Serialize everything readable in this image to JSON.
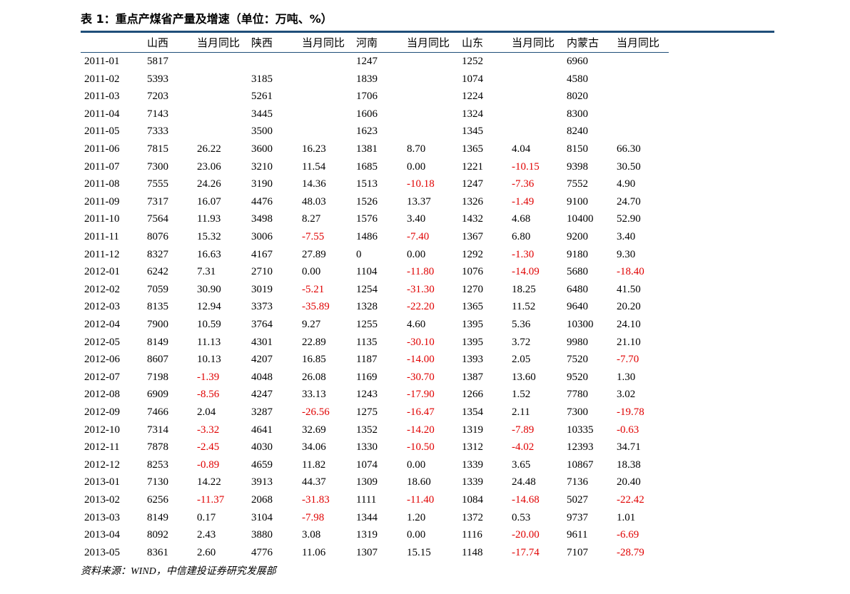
{
  "header": {
    "title": "表 1：重点产煤省产量及增速（单位：万吨、%）"
  },
  "table": {
    "columns": [
      "山西",
      "当月同比",
      "陕西",
      "当月同比",
      "河南",
      "当月同比",
      "山东",
      "当月同比",
      "内蒙古",
      "当月同比"
    ],
    "rows": [
      [
        "2011-01",
        "5817",
        null,
        null,
        null,
        "1247",
        null,
        "1252",
        null,
        "6960",
        null
      ],
      [
        "2011-02",
        "5393",
        null,
        "3185",
        null,
        "1839",
        null,
        "1074",
        null,
        "4580",
        null
      ],
      [
        "2011-03",
        "7203",
        null,
        "5261",
        null,
        "1706",
        null,
        "1224",
        null,
        "8020",
        null
      ],
      [
        "2011-04",
        "7143",
        null,
        "3445",
        null,
        "1606",
        null,
        "1324",
        null,
        "8300",
        null
      ],
      [
        "2011-05",
        "7333",
        null,
        "3500",
        null,
        "1623",
        null,
        "1345",
        null,
        "8240",
        null
      ],
      [
        "2011-06",
        "7815",
        "26.22",
        "3600",
        "16.23",
        "1381",
        "8.70",
        "1365",
        "4.04",
        "8150",
        "66.30"
      ],
      [
        "2011-07",
        "7300",
        "23.06",
        "3210",
        "11.54",
        "1685",
        "0.00",
        "1221",
        "-10.15",
        "9398",
        "30.50"
      ],
      [
        "2011-08",
        "7555",
        "24.26",
        "3190",
        "14.36",
        "1513",
        "-10.18",
        "1247",
        "-7.36",
        "7552",
        "4.90"
      ],
      [
        "2011-09",
        "7317",
        "16.07",
        "4476",
        "48.03",
        "1526",
        "13.37",
        "1326",
        "-1.49",
        "9100",
        "24.70"
      ],
      [
        "2011-10",
        "7564",
        "11.93",
        "3498",
        "8.27",
        "1576",
        "3.40",
        "1432",
        "4.68",
        "10400",
        "52.90"
      ],
      [
        "2011-11",
        "8076",
        "15.32",
        "3006",
        "-7.55",
        "1486",
        "-7.40",
        "1367",
        "6.80",
        "9200",
        "3.40"
      ],
      [
        "2011-12",
        "8327",
        "16.63",
        "4167",
        "27.89",
        "0",
        "0.00",
        "1292",
        "-1.30",
        "9180",
        "9.30"
      ],
      [
        "2012-01",
        "6242",
        "7.31",
        "2710",
        "0.00",
        "1104",
        "-11.80",
        "1076",
        "-14.09",
        "5680",
        "-18.40"
      ],
      [
        "2012-02",
        "7059",
        "30.90",
        "3019",
        "-5.21",
        "1254",
        "-31.30",
        "1270",
        "18.25",
        "6480",
        "41.50"
      ],
      [
        "2012-03",
        "8135",
        "12.94",
        "3373",
        "-35.89",
        "1328",
        "-22.20",
        "1365",
        "11.52",
        "9640",
        "20.20"
      ],
      [
        "2012-04",
        "7900",
        "10.59",
        "3764",
        "9.27",
        "1255",
        "4.60",
        "1395",
        "5.36",
        "10300",
        "24.10"
      ],
      [
        "2012-05",
        "8149",
        "11.13",
        "4301",
        "22.89",
        "1135",
        "-30.10",
        "1395",
        "3.72",
        "9980",
        "21.10"
      ],
      [
        "2012-06",
        "8607",
        "10.13",
        "4207",
        "16.85",
        "1187",
        "-14.00",
        "1393",
        "2.05",
        "7520",
        "-7.70"
      ],
      [
        "2012-07",
        "7198",
        "-1.39",
        "4048",
        "26.08",
        "1169",
        "-30.70",
        "1387",
        "13.60",
        "9520",
        "1.30"
      ],
      [
        "2012-08",
        "6909",
        "-8.56",
        "4247",
        "33.13",
        "1243",
        "-17.90",
        "1266",
        "1.52",
        "7780",
        "3.02"
      ],
      [
        "2012-09",
        "7466",
        "2.04",
        "3287",
        "-26.56",
        "1275",
        "-16.47",
        "1354",
        "2.11",
        "7300",
        "-19.78"
      ],
      [
        "2012-10",
        "7314",
        "-3.32",
        "4641",
        "32.69",
        "1352",
        "-14.20",
        "1319",
        "-7.89",
        "10335",
        "-0.63"
      ],
      [
        "2012-11",
        "7878",
        "-2.45",
        "4030",
        "34.06",
        "1330",
        "-10.50",
        "1312",
        "-4.02",
        "12393",
        "34.71"
      ],
      [
        "2012-12",
        "8253",
        "-0.89",
        "4659",
        "11.82",
        "1074",
        "0.00",
        "1339",
        "3.65",
        "10867",
        "18.38"
      ],
      [
        "2013-01",
        "7130",
        "14.22",
        "3913",
        "44.37",
        "1309",
        "18.60",
        "1339",
        "24.48",
        "7136",
        "20.40"
      ],
      [
        "2013-02",
        "6256",
        "-11.37",
        "2068",
        "-31.83",
        "1111",
        "-11.40",
        "1084",
        "-14.68",
        "5027",
        "-22.42"
      ],
      [
        "2013-03",
        "8149",
        "0.17",
        "3104",
        "-7.98",
        "1344",
        "1.20",
        "1372",
        "0.53",
        "9737",
        "1.01"
      ],
      [
        "2013-04",
        "8092",
        "2.43",
        "3880",
        "3.08",
        "1319",
        "0.00",
        "1116",
        "-20.00",
        "9611",
        "-6.69"
      ],
      [
        "2013-05",
        "8361",
        "2.60",
        "4776",
        "11.06",
        "1307",
        "15.15",
        "1148",
        "-17.74",
        "7107",
        "-28.79"
      ]
    ]
  },
  "footer": {
    "source": "资料来源：WIND，中信建投证券研究发展部"
  }
}
